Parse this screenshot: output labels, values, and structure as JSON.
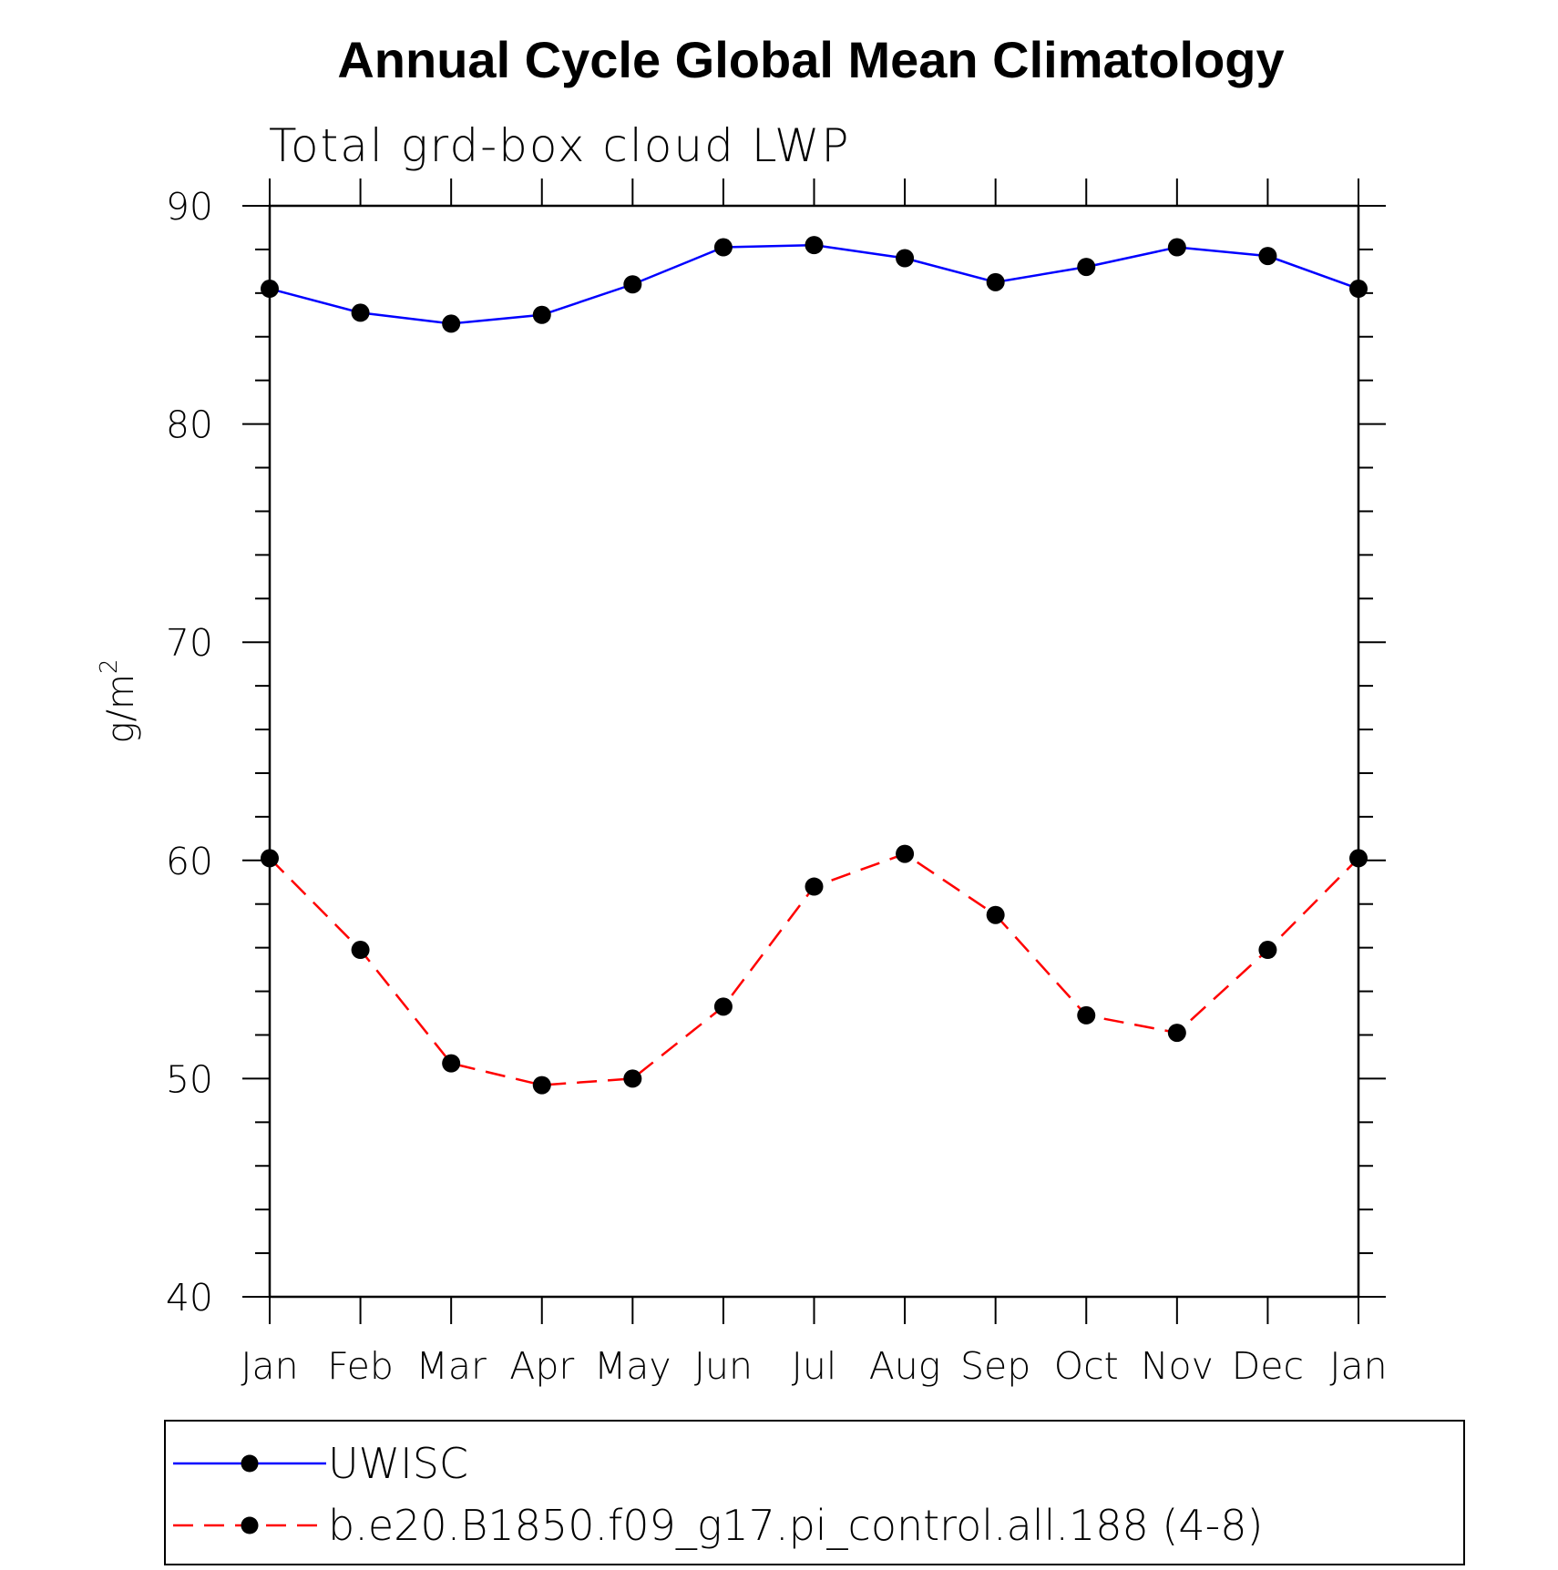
{
  "chart_data": {
    "type": "line",
    "title": "Annual Cycle Global Mean Climatology",
    "subtitle": "Total grd-box cloud LWP",
    "ylabel": "g/m",
    "ylabel_sup": "2",
    "ylim": [
      40,
      90
    ],
    "yticks": [
      40,
      50,
      60,
      70,
      80,
      90
    ],
    "categories": [
      "Jan",
      "Feb",
      "Mar",
      "Apr",
      "May",
      "Jun",
      "Jul",
      "Aug",
      "Sep",
      "Oct",
      "Nov",
      "Dec",
      "Jan"
    ],
    "series": [
      {
        "name": "UWISC",
        "color": "#0000ff",
        "dash": "solid",
        "values": [
          86.2,
          85.1,
          84.6,
          85.0,
          86.4,
          88.1,
          88.2,
          87.6,
          86.5,
          87.2,
          88.1,
          87.7,
          86.2
        ]
      },
      {
        "name": "b.e20.B1850.f09_g17.pi_control.all.188 (4-8)",
        "color": "#ff0000",
        "dash": "dashed",
        "values": [
          60.1,
          55.9,
          50.7,
          49.7,
          50.0,
          53.3,
          58.8,
          60.3,
          57.5,
          52.9,
          52.1,
          55.9,
          60.1
        ]
      }
    ],
    "legend_position": "bottom",
    "grid": false
  }
}
